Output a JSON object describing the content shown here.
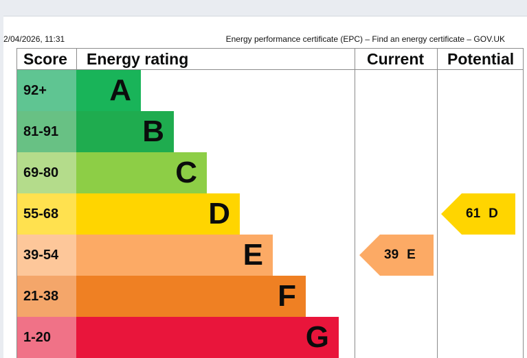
{
  "header": {
    "datetime": "2/04/2026, 11:31",
    "title": "Energy performance certificate (EPC) – Find an energy certificate – GOV.UK"
  },
  "table": {
    "headers": {
      "score": "Score",
      "rating": "Energy rating",
      "current": "Current",
      "potential": "Potential"
    },
    "bands": [
      {
        "score": "92+",
        "letter": "A",
        "color": "#19b459",
        "score_color": "#5fc592"
      },
      {
        "score": "81-91",
        "letter": "B",
        "color": "#1fac4f",
        "score_color": "#68c184"
      },
      {
        "score": "69-80",
        "letter": "C",
        "color": "#8dce46",
        "score_color": "#b4dc8b"
      },
      {
        "score": "55-68",
        "letter": "D",
        "color": "#ffd500",
        "score_color": "#ffe14f"
      },
      {
        "score": "39-54",
        "letter": "E",
        "color": "#fcaa65",
        "score_color": "#fdc79a"
      },
      {
        "score": "21-38",
        "letter": "F",
        "color": "#ef8023",
        "score_color": "#f4a66a"
      },
      {
        "score": "1-20",
        "letter": "G",
        "color": "#e9153b",
        "score_color": "#f07287"
      }
    ],
    "current": {
      "value": "39",
      "letter": "E",
      "color": "#fcaa65"
    },
    "potential": {
      "value": "61",
      "letter": "D",
      "color": "#ffd500"
    }
  }
}
